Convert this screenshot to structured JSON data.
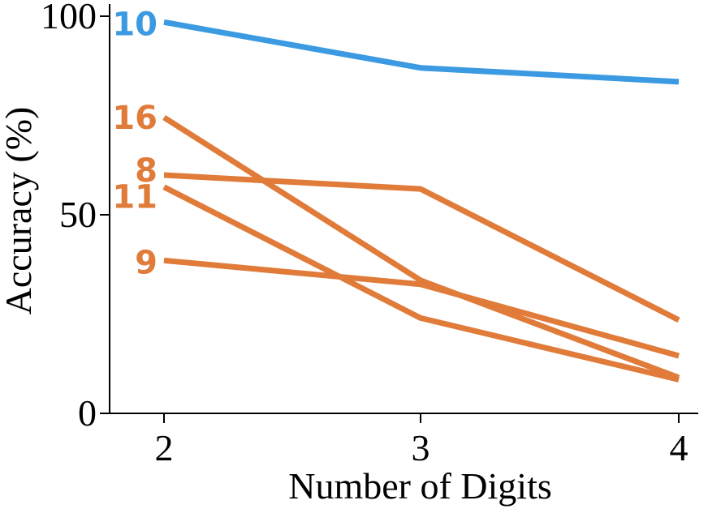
{
  "chart_data": {
    "type": "line",
    "title": "",
    "xlabel": "Number of Digits",
    "ylabel": "Accuracy (%)",
    "x": [
      2,
      3,
      4
    ],
    "x_ticks": [
      "2",
      "3",
      "4"
    ],
    "y_ticks": [
      "0",
      "50",
      "100"
    ],
    "ylim": [
      0,
      100
    ],
    "grid": false,
    "legend": "none",
    "series": [
      {
        "name": "10",
        "values": [
          98.5,
          87,
          83.5
        ],
        "color": "#3b9ae1"
      },
      {
        "name": "16",
        "values": [
          74.5,
          33.5,
          9
        ],
        "color": "#e07b39"
      },
      {
        "name": "8",
        "values": [
          60,
          56.5,
          23.5
        ],
        "color": "#e07b39"
      },
      {
        "name": "11",
        "values": [
          57,
          24,
          8.5
        ],
        "color": "#e07b39"
      },
      {
        "name": "9",
        "values": [
          38.5,
          32.5,
          14.5
        ],
        "color": "#e07b39"
      }
    ]
  }
}
